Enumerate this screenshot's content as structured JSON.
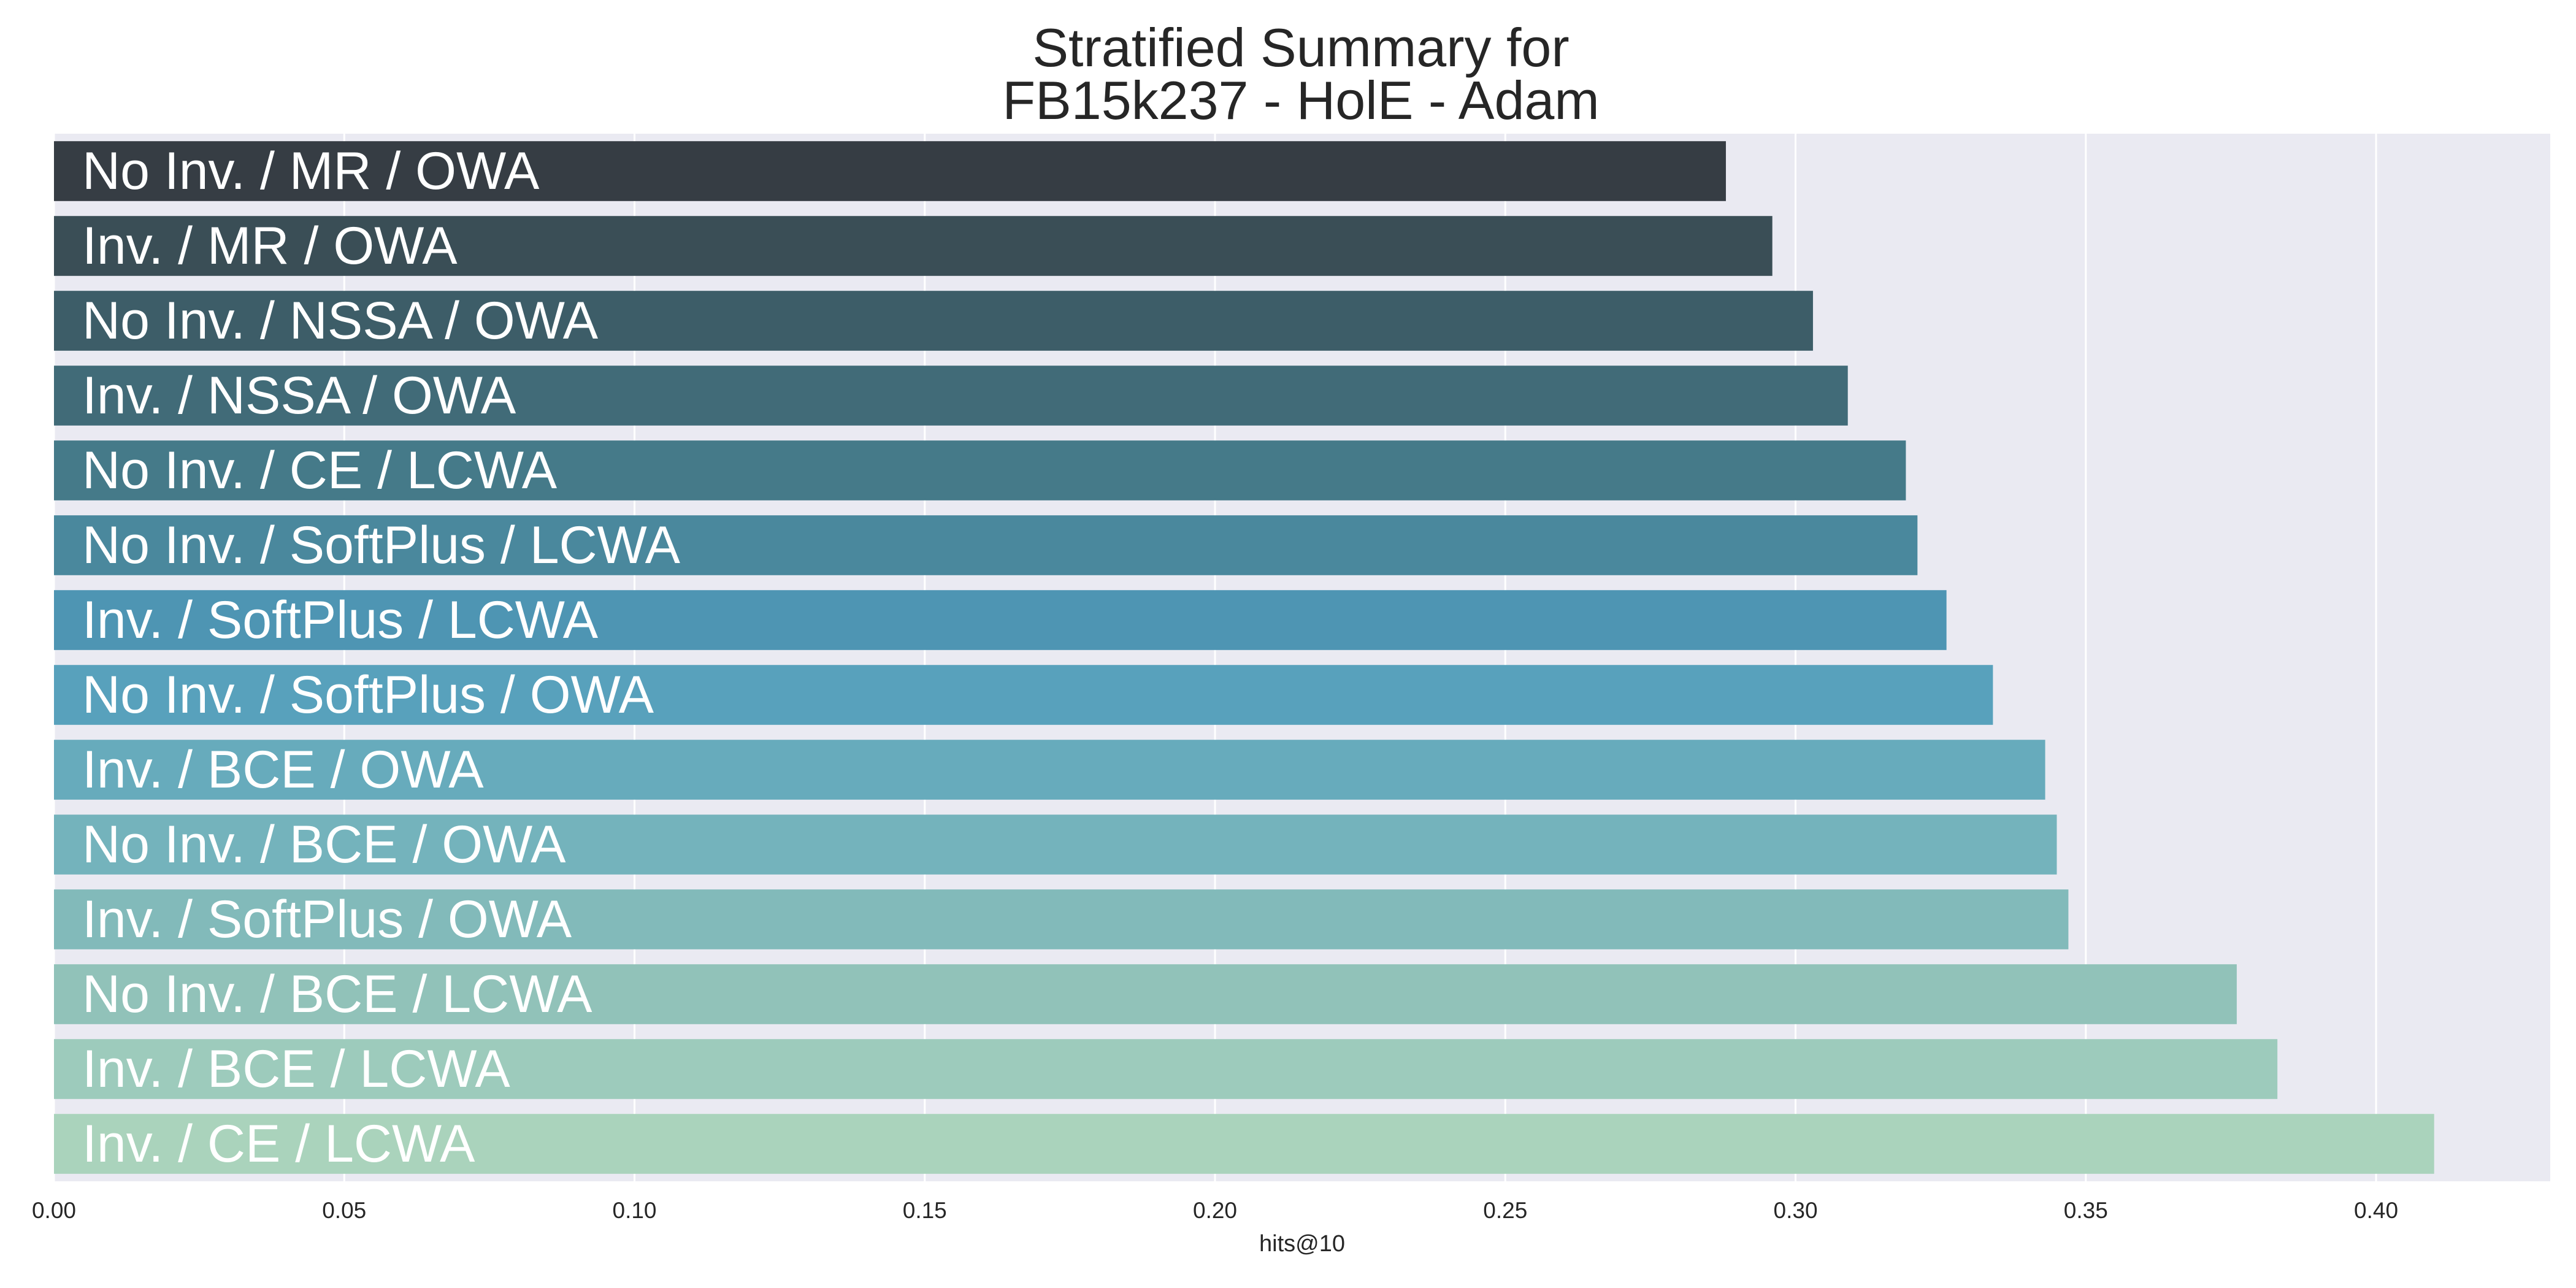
{
  "chart_data": {
    "type": "bar",
    "orientation": "horizontal",
    "title": "Stratified Summary for\nFB15k237 - HolE - Adam",
    "xlabel": "hits@10",
    "ylabel": "",
    "xlim": [
      0,
      0.43
    ],
    "xticks": [
      "0.00",
      "0.05",
      "0.10",
      "0.15",
      "0.20",
      "0.25",
      "0.30",
      "0.35",
      "0.40"
    ],
    "grid": true,
    "categories": [
      "No Inv. / MR / OWA",
      "Inv. / MR / OWA",
      "No Inv. / NSSA / OWA",
      "Inv. / NSSA / OWA",
      "No Inv. / CE / LCWA",
      "No Inv. / SoftPlus / LCWA",
      "Inv. / SoftPlus / LCWA",
      "No Inv. / SoftPlus / OWA",
      "Inv. / BCE / OWA",
      "No Inv. / BCE / OWA",
      "Inv. / SoftPlus / OWA",
      "No Inv. / BCE / LCWA",
      "Inv. / BCE / LCWA",
      "Inv. / CE / LCWA"
    ],
    "values": [
      0.288,
      0.296,
      0.303,
      0.309,
      0.319,
      0.321,
      0.326,
      0.334,
      0.343,
      0.345,
      0.347,
      0.376,
      0.383,
      0.41
    ],
    "colors": [
      "#363d44",
      "#3a4e56",
      "#3d5d68",
      "#416b78",
      "#457a89",
      "#4a889d",
      "#4e95b3",
      "#58a1bc",
      "#67abbc",
      "#74b3bc",
      "#82baba",
      "#91c2b9",
      "#9dcbbc",
      "#aad3bc"
    ],
    "plot_background": "#eaeaf2",
    "grid_color": "#ffffff"
  }
}
